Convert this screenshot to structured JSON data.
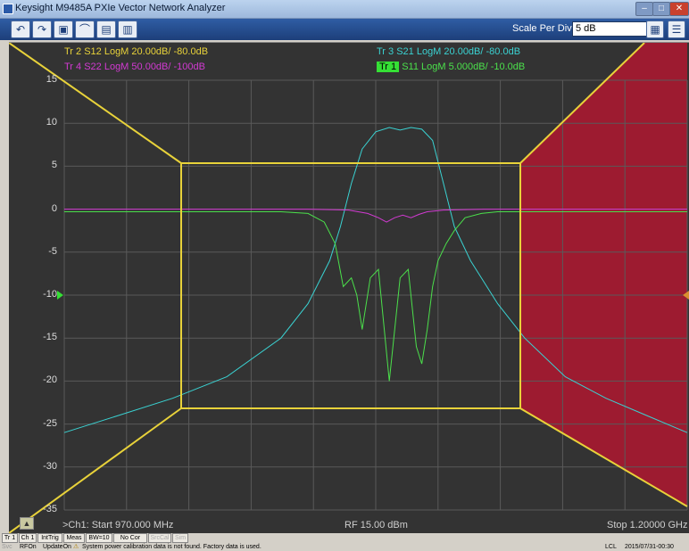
{
  "window": {
    "title": "Keysight M9485A PXIe Vector Network Analyzer"
  },
  "window_buttons": [
    "–",
    "□",
    "✕"
  ],
  "toolbar": {
    "buttons": [
      {
        "icon": "undo-icon",
        "glyph": "↶"
      },
      {
        "icon": "redo-icon",
        "glyph": "↷"
      },
      {
        "icon": "camera-icon",
        "glyph": "▣"
      },
      {
        "icon": "marker-icon",
        "glyph": "⌒"
      },
      {
        "icon": "save-icon",
        "glyph": "▤"
      },
      {
        "icon": "trash-icon",
        "glyph": "▥"
      }
    ],
    "scale_label": "Scale Per Division",
    "scale_value": "5 dB",
    "right_icons": [
      "keypad-icon",
      "menu-grid-icon"
    ]
  },
  "traces": [
    {
      "label": "Tr 2  S12 LogM 20.00dB/  -80.0dB",
      "color": "#e8d23a"
    },
    {
      "label": "Tr 4  S22 LogM 50.00dB/  -100dB",
      "color": "#d23ad2"
    },
    {
      "label": "Tr 3  S21 LogM 20.00dB/  -80.0dB",
      "color": "#3ad2d2"
    },
    {
      "badge": "Tr 1",
      "label": "S11 LogM 5.000dB/  -10.0dB",
      "color": "#4be04b"
    }
  ],
  "y_ticks": [
    "15",
    "10",
    "5",
    "0",
    "-5",
    "-10",
    "-15",
    "-20",
    "-25",
    "-30",
    "-35"
  ],
  "footer": {
    "start": ">Ch1:  Start  970.000 MHz",
    "power": "RF  15.00 dBm",
    "stop": "Stop  1.20000 GHz"
  },
  "status_row1": [
    {
      "t": "Tr 1"
    },
    {
      "t": "Ch 1"
    },
    {
      "t": "IntTrig"
    },
    {
      "t": "Meas"
    },
    {
      "t": "BW=10"
    },
    {
      "t": "No Cor"
    },
    {
      "t": "SrcCal",
      "dim": true
    },
    {
      "t": "Sim",
      "dim": true
    }
  ],
  "status_row2": {
    "items": [
      "Svc",
      "RFOn",
      "UpdateOn"
    ],
    "warning": "System power calibration data is not found. Factory data is used.",
    "lcl": "LCL",
    "datetime": "2015/07/31-00:30"
  },
  "chart_data": {
    "type": "line",
    "x_start_mhz": 970,
    "x_stop_mhz": 1200,
    "ylim": [
      -35,
      15
    ],
    "y_step": 5,
    "grid": true,
    "series": [
      {
        "name": "S21",
        "color": "#3ad2d2",
        "x": [
          970,
          990,
          1010,
          1030,
          1050,
          1060,
          1068,
          1072,
          1076,
          1080,
          1085,
          1090,
          1094,
          1098,
          1102,
          1106,
          1110,
          1114,
          1120,
          1130,
          1140,
          1155,
          1170,
          1185,
          1200
        ],
        "y": [
          -26,
          -24,
          -22,
          -19.5,
          -15,
          -11,
          -6,
          -2,
          3,
          7,
          9,
          9.5,
          9.2,
          9.5,
          9.3,
          8,
          3,
          -2,
          -6,
          -11,
          -15,
          -19.5,
          -22,
          -24,
          -26
        ]
      },
      {
        "name": "S11",
        "color": "#4be04b",
        "x": [
          970,
          1050,
          1060,
          1066,
          1070,
          1073,
          1076,
          1078,
          1080,
          1083,
          1086,
          1090,
          1094,
          1097,
          1100,
          1102,
          1104,
          1106,
          1108,
          1111,
          1114,
          1118,
          1124,
          1130,
          1160,
          1200
        ],
        "y": [
          -0.3,
          -0.3,
          -0.5,
          -1.5,
          -4,
          -9,
          -8,
          -10,
          -14,
          -8,
          -7,
          -20,
          -8,
          -7,
          -16,
          -18,
          -14,
          -9,
          -6,
          -4,
          -2.5,
          -1,
          -0.5,
          -0.3,
          -0.3,
          -0.3
        ]
      },
      {
        "name": "S22",
        "color": "#d23ad2",
        "x": [
          970,
          1060,
          1075,
          1082,
          1086,
          1089,
          1092,
          1095,
          1098,
          1101,
          1104,
          1110,
          1125,
          1200
        ],
        "y": [
          0,
          0,
          -0.1,
          -0.5,
          -1,
          -1.5,
          -1,
          -0.7,
          -1,
          -0.6,
          -0.3,
          -0.1,
          0,
          0
        ]
      }
    ]
  }
}
